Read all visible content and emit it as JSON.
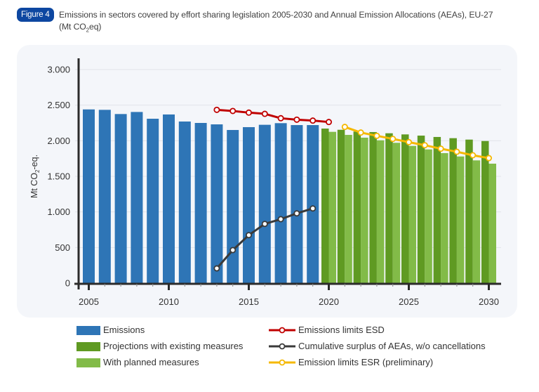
{
  "figure": {
    "badge": "Figure 4",
    "title_line1": "Emissions in sectors covered by effort sharing legislation 2005-2030 and Annual Emission Allocations (AEAs), EU-27",
    "title_line2_pre": "(Mt CO",
    "title_line2_sub": "2",
    "title_line2_post": "eq)"
  },
  "colors": {
    "emissions": "#2e75b6",
    "existing": "#5f9a22",
    "planned": "#82bb48",
    "esd_limits": "#c00000",
    "surplus": "#3a3a3a",
    "esr_limits": "#f5b800",
    "badge": "#0d47a1",
    "panel": "#f4f6fa",
    "grid": "#e2e4ea"
  },
  "legend": {
    "items": [
      {
        "label": "Emissions",
        "kind": "bar",
        "series": "emissions"
      },
      {
        "label": "Projections with existing measures",
        "kind": "bar",
        "series": "existing"
      },
      {
        "label": "With planned measures",
        "kind": "bar",
        "series": "planned"
      },
      {
        "label": "Emissions limits ESD",
        "kind": "line",
        "series": "esd_limits"
      },
      {
        "label": "Cumulative surplus of AEAs, w/o cancellations",
        "kind": "line",
        "series": "surplus"
      },
      {
        "label": "Emission limits ESR (preliminary)",
        "kind": "line",
        "series": "esr_limits"
      }
    ]
  },
  "chart_data": {
    "type": "bar",
    "title": "Emissions in sectors covered by effort sharing legislation 2005-2030 and Annual Emission Allocations (AEAs), EU-27 (Mt CO2eq)",
    "xlabel": "",
    "ylabel_pre": "Mt CO",
    "ylabel_sub": "2",
    "ylabel_post": "-eq.",
    "ylim": [
      0,
      3000
    ],
    "xlim": [
      2005,
      2030
    ],
    "grid": true,
    "legend_position": "bottom",
    "y_ticks": [
      {
        "value": 0,
        "label": "0"
      },
      {
        "value": 500,
        "label": "500"
      },
      {
        "value": 1000,
        "label": "1.000"
      },
      {
        "value": 1500,
        "label": "1.500"
      },
      {
        "value": 2000,
        "label": "2.000"
      },
      {
        "value": 2500,
        "label": "2.500"
      },
      {
        "value": 3000,
        "label": "3.000"
      }
    ],
    "x_ticks": [
      {
        "value": 2005,
        "label": "2005"
      },
      {
        "value": 2010,
        "label": "2010"
      },
      {
        "value": 2015,
        "label": "2015"
      },
      {
        "value": 2020,
        "label": "2020"
      },
      {
        "value": 2025,
        "label": "2025"
      },
      {
        "value": 2030,
        "label": "2030"
      }
    ],
    "series": [
      {
        "name": "Emissions",
        "key": "emissions",
        "kind": "bar",
        "x": [
          2005,
          2006,
          2007,
          2008,
          2009,
          2010,
          2011,
          2012,
          2013,
          2014,
          2015,
          2016,
          2017,
          2018,
          2019
        ],
        "values": [
          2440,
          2434,
          2375,
          2404,
          2309,
          2369,
          2270,
          2250,
          2230,
          2151,
          2191,
          2224,
          2247,
          2220,
          2220
        ]
      },
      {
        "name": "Projections with existing measures",
        "key": "existing",
        "kind": "bar",
        "x": [
          2020,
          2021,
          2022,
          2023,
          2024,
          2025,
          2026,
          2027,
          2028,
          2029,
          2030
        ],
        "values": [
          2171,
          2154,
          2129,
          2122,
          2105,
          2089,
          2072,
          2053,
          2036,
          2016,
          1996
        ]
      },
      {
        "name": "With planned measures",
        "key": "planned",
        "kind": "bar",
        "x": [
          2020,
          2021,
          2022,
          2023,
          2024,
          2025,
          2026,
          2027,
          2028,
          2029,
          2030
        ],
        "values": [
          2125,
          2082,
          2043,
          2006,
          1971,
          1927,
          1878,
          1826,
          1779,
          1724,
          1678
        ]
      },
      {
        "name": "Emissions limits ESD",
        "key": "esd_limits",
        "kind": "line",
        "x": [
          2013,
          2014,
          2015,
          2016,
          2017,
          2018,
          2019,
          2020
        ],
        "values": [
          2434,
          2418,
          2395,
          2378,
          2316,
          2296,
          2283,
          2263
        ]
      },
      {
        "name": "Cumulative surplus of AEAs, w/o cancellations",
        "key": "surplus",
        "kind": "line",
        "x": [
          2013,
          2014,
          2015,
          2016,
          2017,
          2018,
          2019
        ],
        "values": [
          207,
          464,
          674,
          832,
          898,
          980,
          1049
        ]
      },
      {
        "name": "Emission limits ESR (preliminary)",
        "key": "esr_limits",
        "kind": "line",
        "x": [
          2021,
          2022,
          2023,
          2024,
          2025,
          2026,
          2027,
          2028,
          2029,
          2030
        ],
        "values": [
          2194,
          2115,
          2069,
          2026,
          1980,
          1937,
          1888,
          1845,
          1796,
          1756
        ]
      }
    ]
  }
}
